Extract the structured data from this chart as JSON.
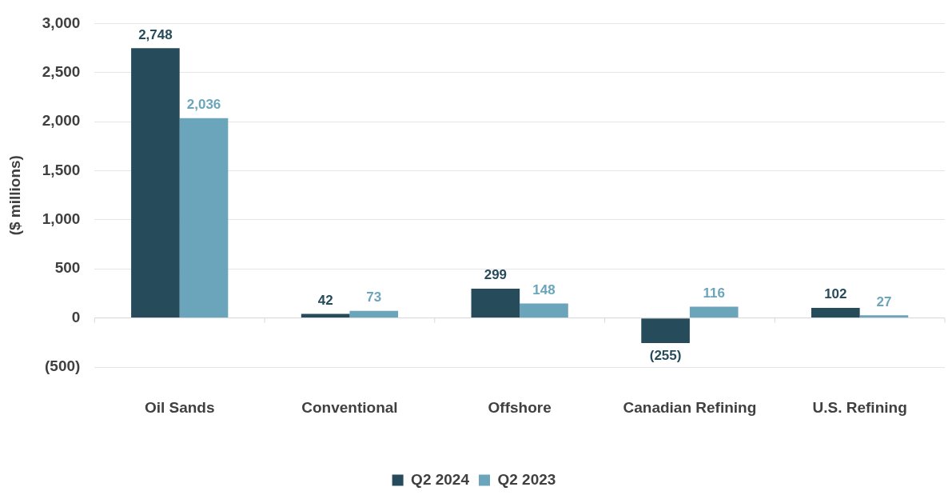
{
  "chart_data": {
    "type": "bar",
    "ylabel": "($ millions)",
    "categories": [
      "Oil Sands",
      "Conventional",
      "Offshore",
      "Canadian Refining",
      "U.S. Refining"
    ],
    "series": [
      {
        "name": "Q2 2024",
        "color": "#264b5a",
        "values": [
          2748,
          42,
          299,
          -255,
          102
        ],
        "value_labels": [
          "2,748",
          "42",
          "299",
          "(255)",
          "102"
        ]
      },
      {
        "name": "Q2 2023",
        "color": "#6ba5bb",
        "values": [
          2036,
          73,
          148,
          116,
          27
        ],
        "value_labels": [
          "2,036",
          "73",
          "148",
          "116",
          "27"
        ]
      }
    ],
    "ylim": [
      -500,
      3000
    ],
    "yticks": [
      {
        "value": -500,
        "label": "(500)"
      },
      {
        "value": 0,
        "label": "0"
      },
      {
        "value": 500,
        "label": "500"
      },
      {
        "value": 1000,
        "label": "1,000"
      },
      {
        "value": 1500,
        "label": "1,500"
      },
      {
        "value": 2000,
        "label": "2,000"
      },
      {
        "value": 2500,
        "label": "2,500"
      },
      {
        "value": 3000,
        "label": "3,000"
      }
    ],
    "grid": "y",
    "legend": "bottom"
  }
}
